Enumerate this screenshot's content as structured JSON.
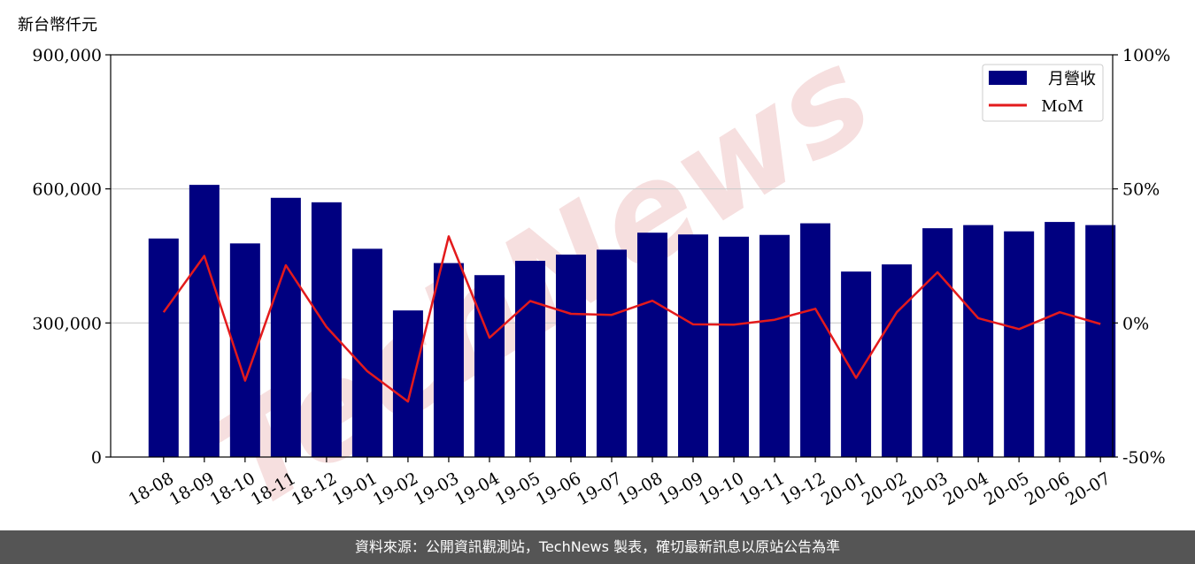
{
  "unit_label": "新台幣仟元",
  "footer_text": "資料來源：公開資訊觀測站，TechNews 製表，確切最新訊息以原站公告為準",
  "watermark_text": "TechNews",
  "colors": {
    "bar": "#000080",
    "line": "#e31a1c",
    "watermark": "#f3d5d5",
    "grid": "#cccccc",
    "footer_bg": "#555555"
  },
  "chart_data": {
    "type": "bar",
    "categories": [
      "18-08",
      "18-09",
      "18-10",
      "18-11",
      "18-12",
      "19-01",
      "19-02",
      "19-03",
      "19-04",
      "19-05",
      "19-06",
      "19-07",
      "19-08",
      "19-09",
      "19-10",
      "19-11",
      "19-12",
      "20-01",
      "20-02",
      "20-03",
      "20-04",
      "20-05",
      "20-06",
      "20-07"
    ],
    "series": [
      {
        "name": "月營收",
        "type": "bar",
        "axis": "left",
        "values": [
          489000,
          609000,
          478000,
          580000,
          570000,
          466000,
          328000,
          434000,
          407000,
          439000,
          453000,
          464000,
          502000,
          498000,
          493000,
          497000,
          523000,
          415000,
          431000,
          512000,
          519000,
          505000,
          526000,
          519000
        ]
      },
      {
        "name": "MoM",
        "type": "line",
        "axis": "right",
        "values": [
          4,
          25,
          -21.5,
          21.5,
          -1.5,
          -18,
          -29.3,
          32.3,
          -5.5,
          8.2,
          3.4,
          3,
          8.3,
          -0.5,
          -0.6,
          1.2,
          5.3,
          -20.5,
          4,
          18.9,
          1.8,
          -2.3,
          4,
          -0.4
        ]
      }
    ],
    "ylim_left": [
      0,
      900000
    ],
    "yticks_left": [
      0,
      300000,
      600000,
      900000
    ],
    "ytick_labels_left": [
      "0",
      "300,000",
      "600,000",
      "900,000"
    ],
    "ylim_right": [
      -50,
      100
    ],
    "yticks_right": [
      -50,
      0,
      50,
      100
    ],
    "ytick_labels_right": [
      "-50%",
      "0%",
      "50%",
      "100%"
    ],
    "grid": "horizontal",
    "legend_position": "top-right"
  }
}
